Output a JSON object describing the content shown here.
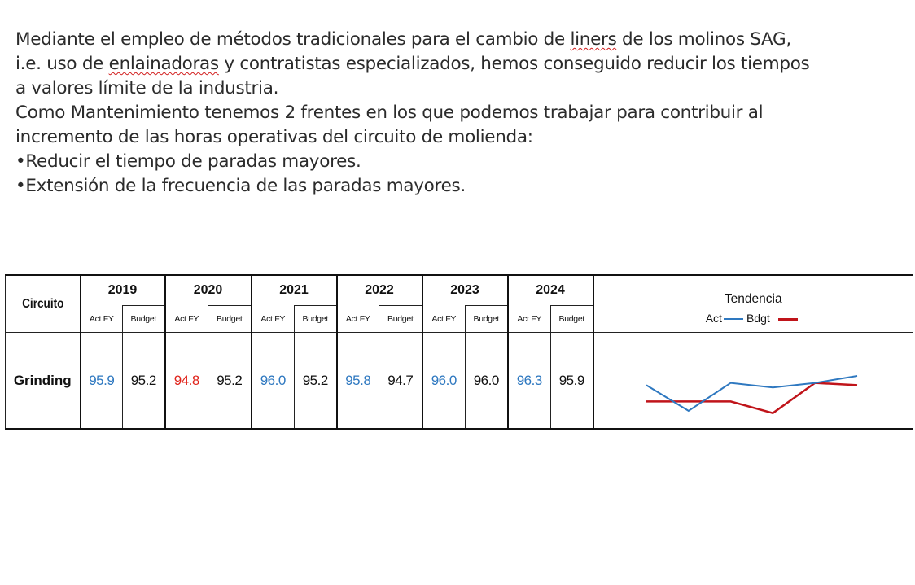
{
  "text": {
    "l1_a": "Mediante el empleo de métodos tradicionales para el cambio de ",
    "l1_b": "liners",
    "l1_c": " de los molinos SAG,",
    "l2_a": "i.e. uso de ",
    "l2_b": "enlainadoras",
    "l2_c": " y contratistas especializados, hemos conseguido reducir los tiempos",
    "l3": "a valores límite de la industria.",
    "l4": "Como Mantenimiento tenemos 2 frentes en los que podemos trabajar para contribuir al",
    "l5": "incremento de las horas operativas del circuito de molienda:",
    "b1": "•Reducir el tiempo de paradas mayores.",
    "b2": "•Extensión de la frecuencia de las paradas mayores."
  },
  "table": {
    "circuito_label": "Circuito",
    "tendencia_label": "Tendencia",
    "legend_act": "Act",
    "legend_bdgt": "Bdgt",
    "years": [
      "2019",
      "2020",
      "2021",
      "2022",
      "2023",
      "2024"
    ],
    "sub_act": "Act FY",
    "sub_budget": "Budget",
    "row_label": "Grinding",
    "act": [
      "95.9",
      "94.8",
      "96.0",
      "95.8",
      "96.0",
      "96.3"
    ],
    "budget": [
      "95.2",
      "95.2",
      "95.2",
      "94.7",
      "96.0",
      "95.9"
    ],
    "colors": {
      "act": "#2e78c0",
      "act_below_budget": "#e0241c",
      "budget_line": "#c0141a",
      "act_line": "#2e78c0"
    }
  },
  "chart_data": {
    "type": "line",
    "x": [
      "2019",
      "2020",
      "2021",
      "2022",
      "2023",
      "2024"
    ],
    "series": [
      {
        "name": "Act",
        "values": [
          95.9,
          94.8,
          96.0,
          95.8,
          96.0,
          96.3
        ]
      },
      {
        "name": "Bdgt",
        "values": [
          95.2,
          95.2,
          95.2,
          94.7,
          96.0,
          95.9
        ]
      }
    ],
    "title": "Tendencia",
    "legend": "top"
  }
}
